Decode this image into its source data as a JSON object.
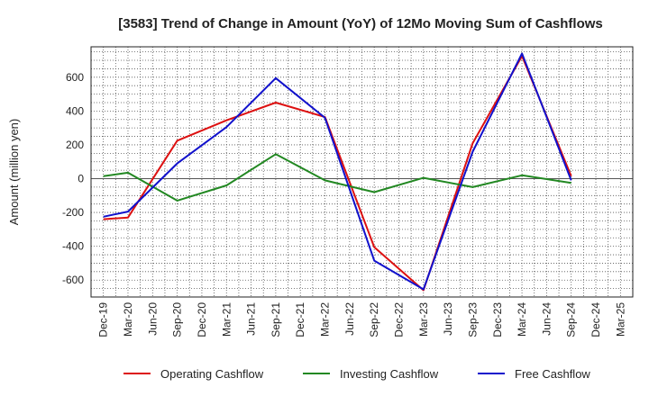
{
  "chart_data": {
    "type": "line",
    "title": "[3583]  Trend of Change in Amount (YoY) of 12Mo Moving Sum of Cashflows",
    "xlabel": "",
    "ylabel": "Amount (million yen)",
    "ylim": [
      -700,
      780
    ],
    "yticks": [
      -600,
      -400,
      -200,
      0,
      200,
      400,
      600
    ],
    "categories": [
      "Dec-19",
      "Mar-20",
      "Jun-20",
      "Sep-20",
      "Dec-20",
      "Mar-21",
      "Jun-21",
      "Sep-21",
      "Dec-21",
      "Mar-22",
      "Jun-22",
      "Sep-22",
      "Dec-22",
      "Mar-23",
      "Jun-23",
      "Sep-23",
      "Dec-23",
      "Mar-24",
      "Jun-24",
      "Sep-24",
      "Dec-24",
      "Mar-25"
    ],
    "series": [
      {
        "name": "Operating Cashflow",
        "color": "#dd1111",
        "values": [
          -240,
          -230,
          null,
          225,
          null,
          345,
          null,
          450,
          null,
          365,
          null,
          -405,
          null,
          -660,
          null,
          210,
          null,
          725,
          null,
          15,
          null,
          null
        ]
      },
      {
        "name": "Investing Cashflow",
        "color": "#228822",
        "values": [
          15,
          35,
          null,
          -130,
          null,
          -40,
          null,
          145,
          null,
          -10,
          null,
          -80,
          null,
          5,
          null,
          -50,
          null,
          20,
          null,
          -25,
          null,
          null
        ]
      },
      {
        "name": "Free Cashflow",
        "color": "#1111cc",
        "values": [
          -225,
          -195,
          null,
          90,
          null,
          305,
          null,
          595,
          null,
          360,
          null,
          -485,
          null,
          -655,
          null,
          160,
          null,
          740,
          null,
          -10,
          null,
          null
        ]
      }
    ],
    "grid": true,
    "legend": "bottom"
  }
}
